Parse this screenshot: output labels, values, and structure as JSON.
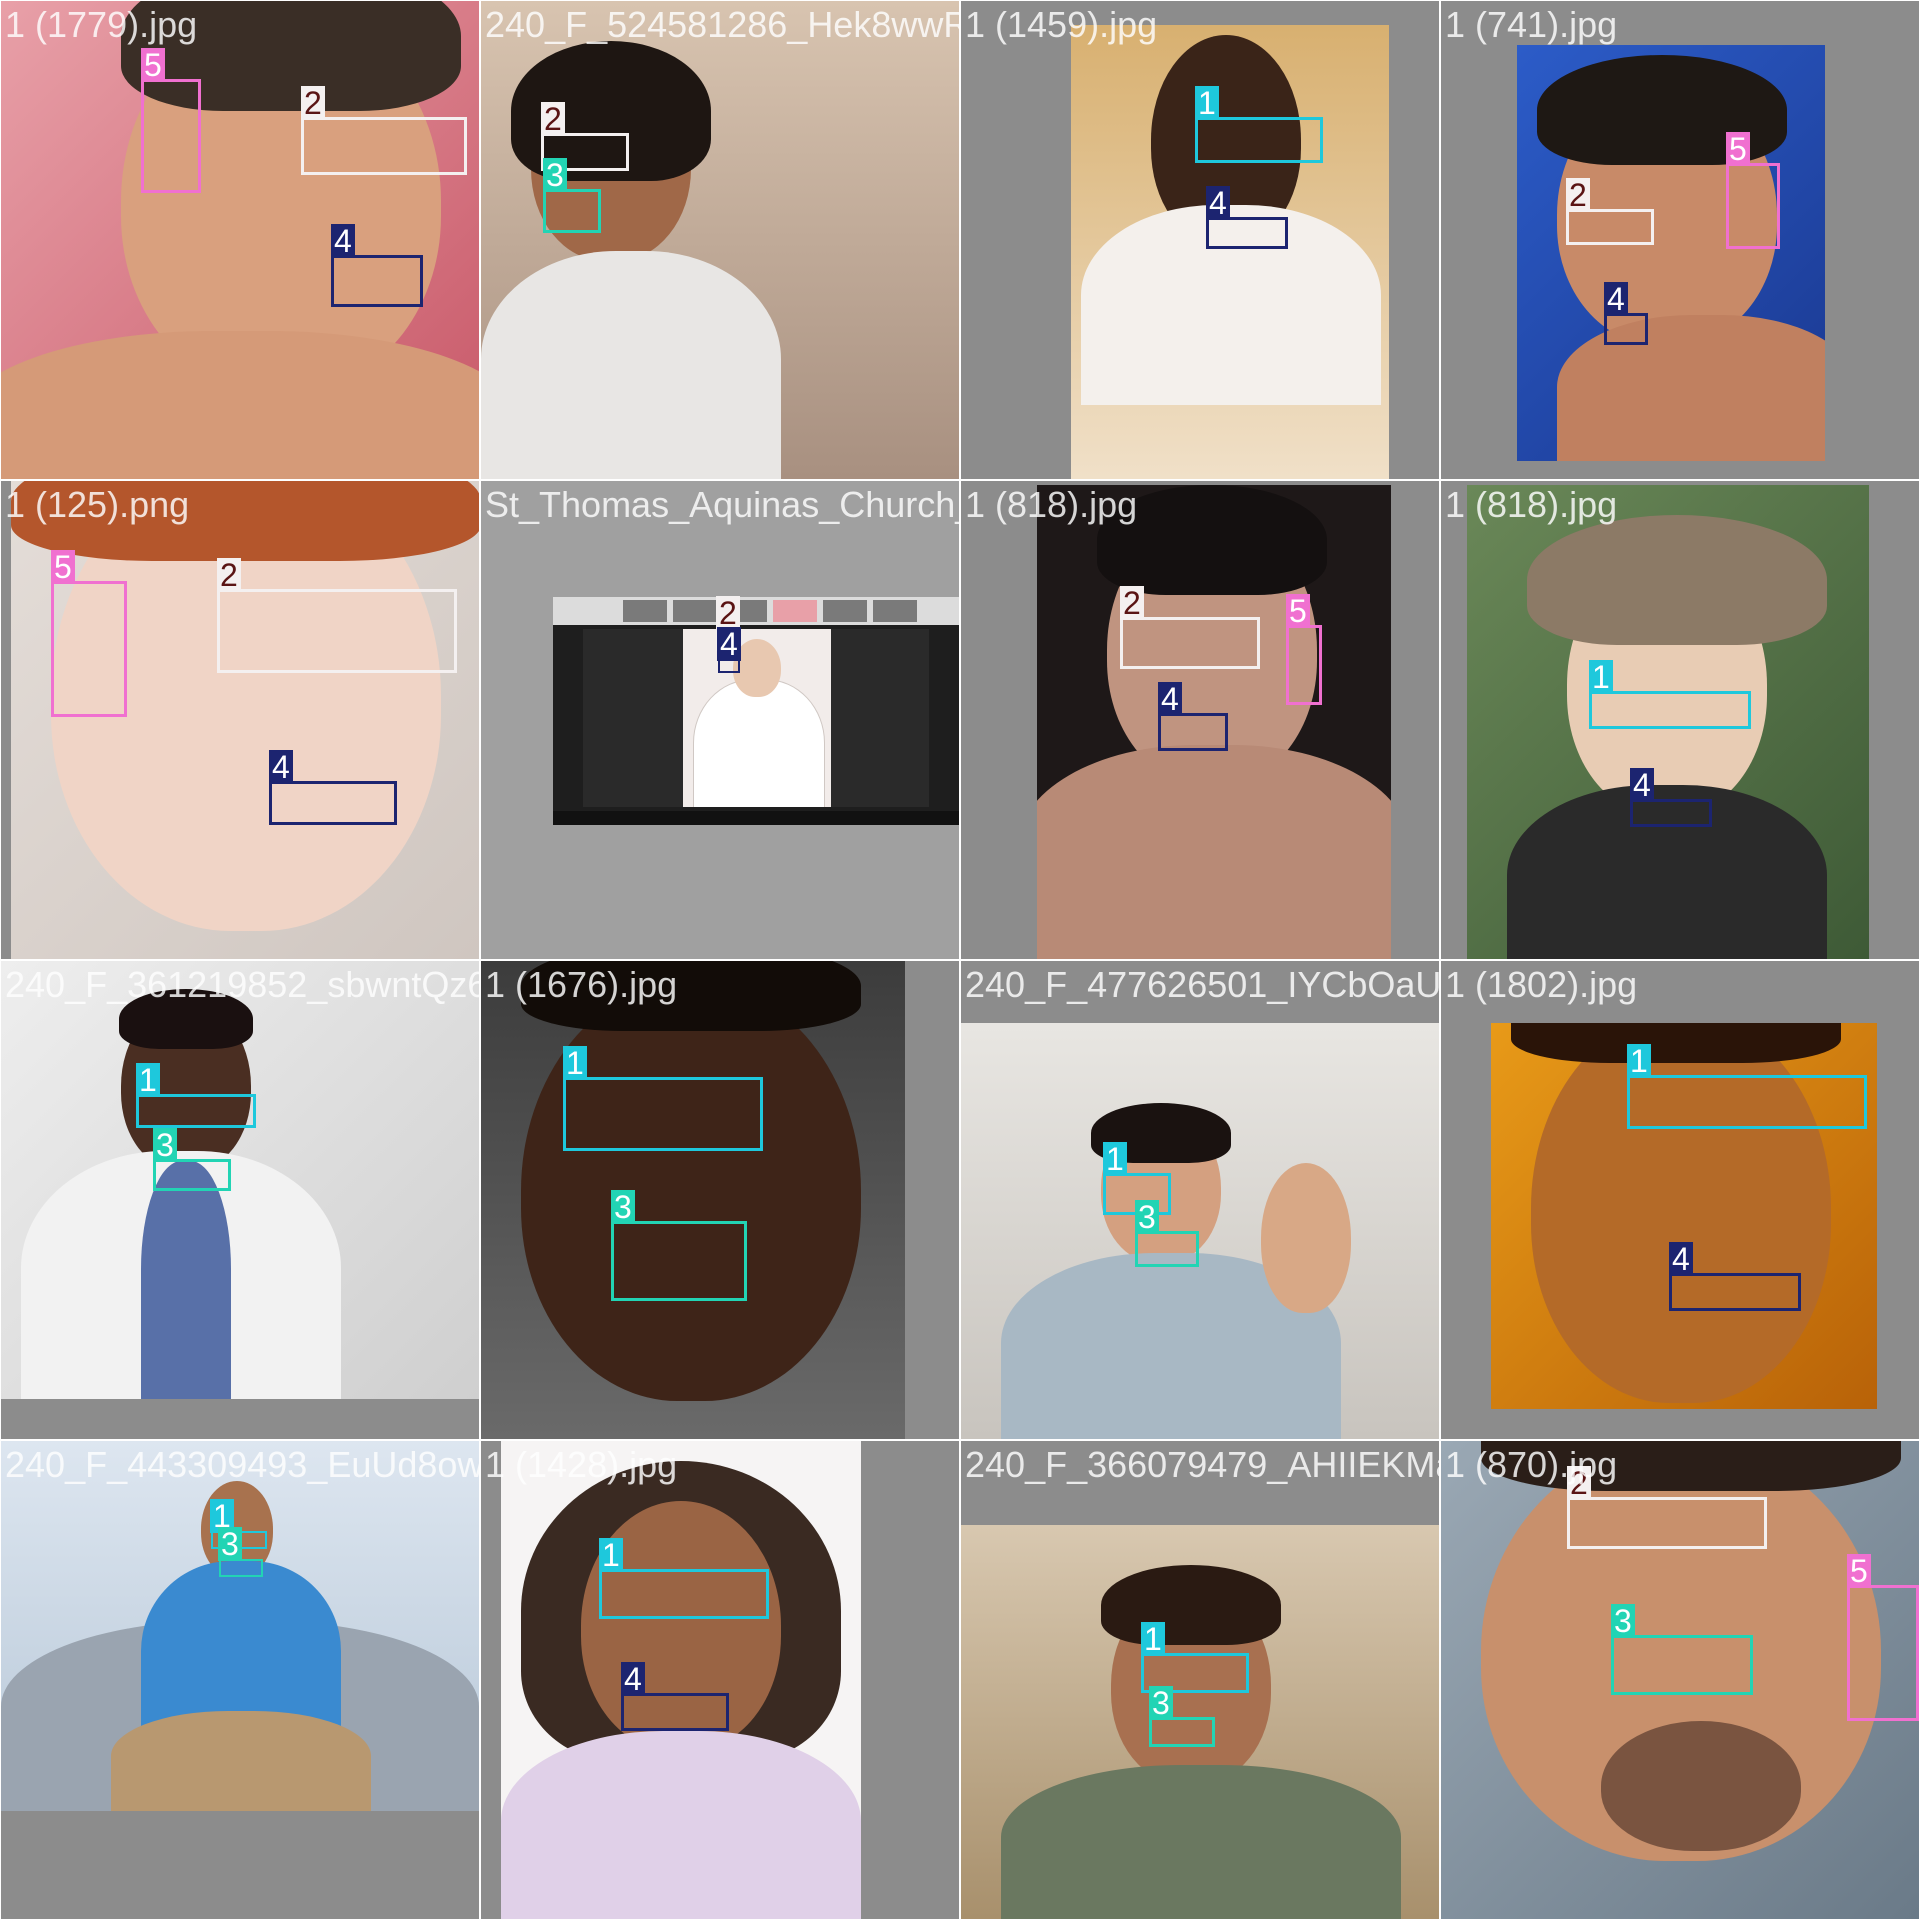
{
  "colors": {
    "class_1": "#1ec8dc",
    "class_2": "#f4f0f0",
    "class_3": "#22d4b4",
    "class_4": "#1c2470",
    "class_5": "#f070d0",
    "tag_text_class_2": "#5a1414",
    "tile_background": "#8c8c8c"
  },
  "tiles": [
    {
      "filename": "1 (1779).jpg",
      "labels": [
        "5",
        "2",
        "4"
      ]
    },
    {
      "filename": "240_F_524581286_Hek8wwR5IlF6nVjY8SJUloc03",
      "labels": [
        "2",
        "3"
      ]
    },
    {
      "filename": "1 (1459).jpg",
      "labels": [
        "1",
        "4"
      ]
    },
    {
      "filename": "1 (741).jpg",
      "labels": [
        "5",
        "2",
        "4"
      ]
    },
    {
      "filename": "1 (125).png",
      "labels": [
        "5",
        "2",
        "4"
      ]
    },
    {
      "filename": "St_Thomas_Aquinas_Church_(Iran)_ZOOM_sess",
      "labels": [
        "2",
        "4"
      ]
    },
    {
      "filename": "1 (818).jpg",
      "labels": [
        "2",
        "5",
        "4"
      ]
    },
    {
      "filename": "1 (818).jpg",
      "labels": [
        "1",
        "4"
      ]
    },
    {
      "filename": "240_F_361219852_sbwntQz6HGRGGyLxTzJwyrU",
      "labels": [
        "1",
        "3"
      ]
    },
    {
      "filename": "1 (1676).jpg",
      "labels": [
        "1",
        "3"
      ]
    },
    {
      "filename": "240_F_477626501_IYCbOaUAiH3OGljmGL2ozWYN",
      "labels": [
        "1",
        "3"
      ]
    },
    {
      "filename": "1 (1802).jpg",
      "labels": [
        "1",
        "4"
      ]
    },
    {
      "filename": "240_F_443309493_EuUd8owRZ6BWyzH17NsPzT",
      "labels": [
        "1",
        "3"
      ]
    },
    {
      "filename": "1 (1428).jpg",
      "labels": [
        "1",
        "4"
      ]
    },
    {
      "filename": "240_F_366079479_AHIIEKMaEYWlhM3aSTvS2Ff7",
      "labels": [
        "1",
        "3"
      ]
    },
    {
      "filename": "1 (870).jpg",
      "labels": [
        "2",
        "5",
        "3"
      ]
    }
  ]
}
